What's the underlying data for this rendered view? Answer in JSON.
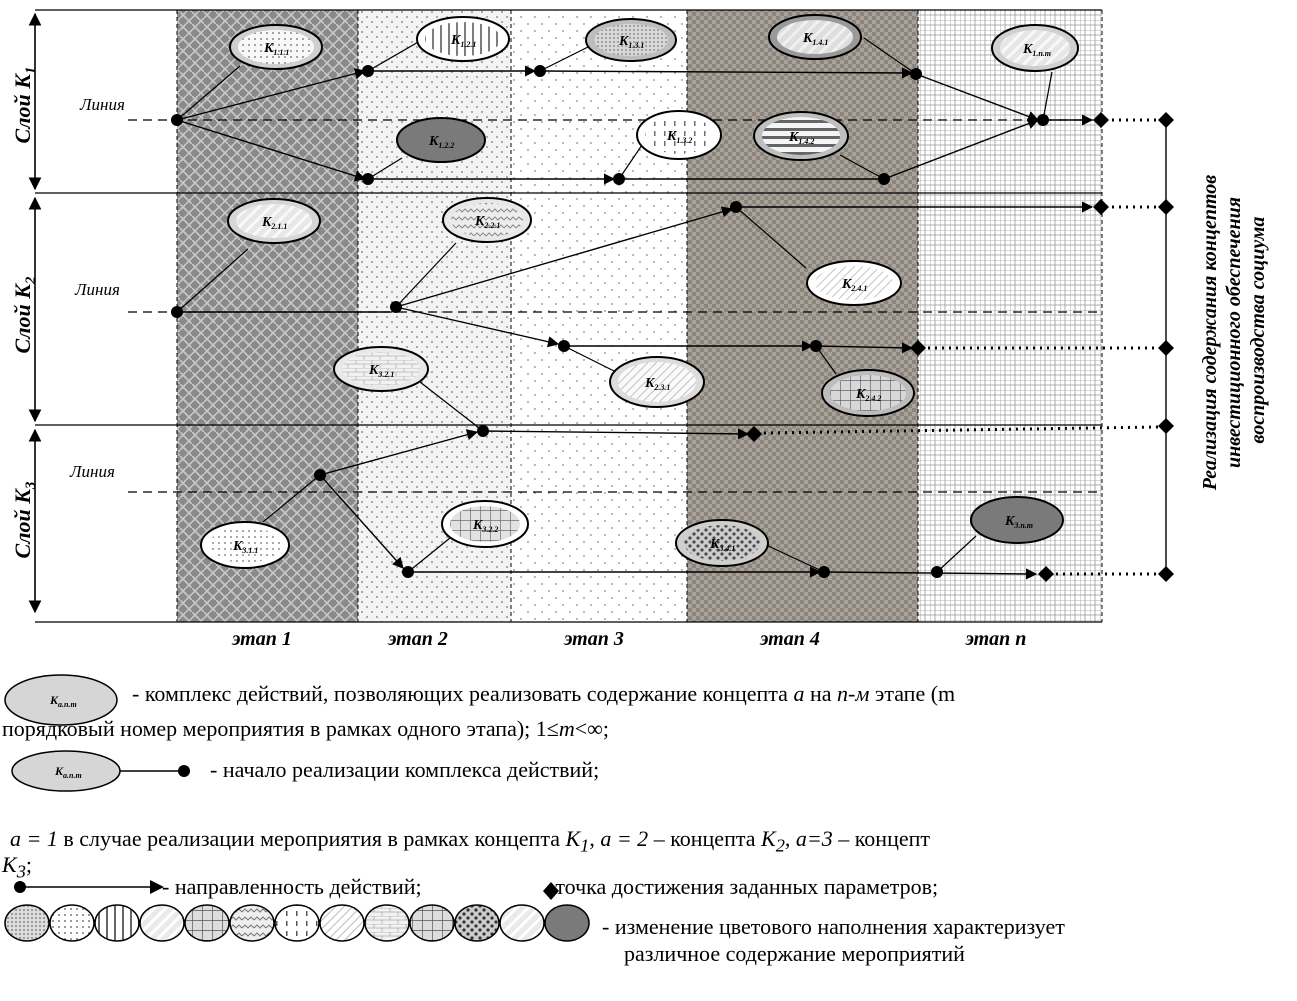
{
  "diagram": {
    "stage_labels": [
      "этап 1",
      "этап 2",
      "этап 3",
      "этап 4",
      "этап n"
    ],
    "layers": [
      {
        "label": "Слой K",
        "sub": "1",
        "line": "Линия"
      },
      {
        "label": "Слой K",
        "sub": "2",
        "line": "Линия"
      },
      {
        "label": "Слой K",
        "sub": "3",
        "line": "Линия"
      }
    ],
    "right_title": [
      "Реализация содержания концептов",
      "инвестиционного обеспечения",
      "воспроизводства социума"
    ],
    "nodes": [
      {
        "id": "k111",
        "label": "K",
        "sub": "1.1.1",
        "fill": "#cfcfcf",
        "pattern": "dots"
      },
      {
        "id": "k121",
        "label": "K",
        "sub": "1.2.1",
        "fill": "#ffffff",
        "pattern": "vstripe"
      },
      {
        "id": "k131",
        "label": "K",
        "sub": "1.3.1",
        "fill": "#bdbdbd",
        "pattern": "grid"
      },
      {
        "id": "k141",
        "label": "K",
        "sub": "1.4.1",
        "fill": "#9a9a9a",
        "pattern": "diag"
      },
      {
        "id": "k1nm",
        "label": "K",
        "sub": "1.n.m",
        "fill": "#d0d0d0",
        "pattern": "diag"
      },
      {
        "id": "k122",
        "label": "K",
        "sub": "1.2.2",
        "fill": "#7a7a7a",
        "pattern": "none"
      },
      {
        "id": "k132",
        "label": "K",
        "sub": "1.3.2",
        "fill": "#ffffff",
        "pattern": "vdash"
      },
      {
        "id": "k142",
        "label": "K",
        "sub": "1.4.2",
        "fill": "#bfbfbf",
        "pattern": "hstripe"
      },
      {
        "id": "k211",
        "label": "K",
        "sub": "2.1.1",
        "fill": "#d6d6d6",
        "pattern": "diag"
      },
      {
        "id": "k221",
        "label": "K",
        "sub": "2.2.1",
        "fill": "#e8e8e8",
        "pattern": "wave"
      },
      {
        "id": "k241",
        "label": "K",
        "sub": "2.4.1",
        "fill": "#ffffff",
        "pattern": "diagthin"
      },
      {
        "id": "k321",
        "label": "K",
        "sub": "3.2.1",
        "fill": "#e9e9e9",
        "pattern": "brick"
      },
      {
        "id": "k231",
        "label": "K",
        "sub": "2.3.1",
        "fill": "#dcdcdc",
        "pattern": "diagthin"
      },
      {
        "id": "k242",
        "label": "K",
        "sub": "2.4.2",
        "fill": "#bdbdbd",
        "pattern": "bigGrid"
      },
      {
        "id": "k311",
        "label": "K",
        "sub": "3.1.1",
        "fill": "#ffffff",
        "pattern": "dots"
      },
      {
        "id": "k322",
        "label": "K",
        "sub": "3.2.2",
        "fill": "#ffffff",
        "pattern": "bigGrid"
      },
      {
        "id": "k341",
        "label": "K",
        "sub": "3.4.1",
        "fill": "#cfcfcf",
        "pattern": "blobs"
      },
      {
        "id": "k3nm",
        "label": "K",
        "sub": "3.n.m",
        "fill": "#7a7a7a",
        "pattern": "none"
      }
    ]
  },
  "legend": {
    "symbol_label": "K",
    "symbol_sub": "a.n.m",
    "line1": "- комплекс действий, позволяющих реализовать содержание концепта",
    "var_a": "a",
    "line1b": "на",
    "var_n": "n-м",
    "line1c": "этапе (m",
    "line2": "порядковый номер мероприятия в рамках одного этапа); 1≤",
    "var_m": "m",
    "line2b": "<∞;",
    "line3": "- начало реализации комплекса действий;",
    "line4a": "a = 1",
    "line4b": "в случае реализации мероприятия в рамках концепта",
    "k1": "K",
    "k1sub": "1",
    "line4c": ",",
    "line4d": "a = 2",
    "line4e": "– концепта",
    "k2": "K",
    "k2sub": "2",
    "line4f": ",",
    "line4g": "a=3",
    "line4h": "– концепт",
    "line5": "K",
    "line5sub": "3",
    "line5b": ";",
    "line6": "- направленность действий;",
    "line6b": "-точка достижения заданных параметров;",
    "line7": "- изменение цветового наполнения характеризует",
    "line8": "различное содержание мероприятий"
  }
}
